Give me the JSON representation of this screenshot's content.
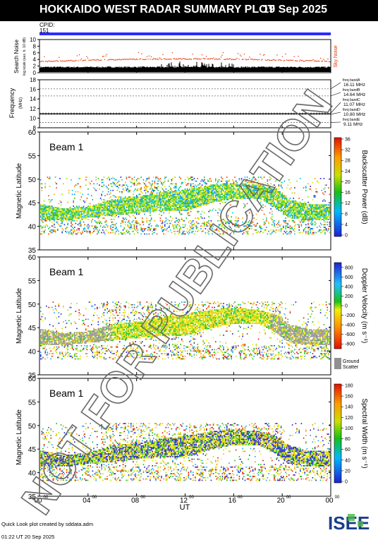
{
  "header": {
    "title": "HOKKAIDO WEST RADAR SUMMARY PLOT",
    "date": "19 Sep 2025"
  },
  "cpid": {
    "label": "CPID:",
    "value": "151",
    "bar_color": "#2b2bff"
  },
  "noise_panel": {
    "ylabel": "Search Noise",
    "ylabel_sub": "log scale (aux. b. 10 dB)",
    "legend": "Sky Noise",
    "yticks": [
      "0",
      "2",
      "4",
      "6",
      "8",
      "10"
    ],
    "ylim": [
      0,
      10
    ]
  },
  "freq_panel": {
    "ylabel": "Frequency",
    "ylabel_unit": "(MHz)",
    "yticks": [
      "8",
      "10",
      "12",
      "14",
      "16",
      "18"
    ],
    "ylim": [
      8,
      18
    ],
    "bands": [
      {
        "name": "freq bandA",
        "value": "16.11 MHz"
      },
      {
        "name": "freq bandB",
        "value": "14.64 MHz"
      },
      {
        "name": "freq bandC",
        "value": "11.07 MHz"
      },
      {
        "name": "freq bandD",
        "value": "10.80 MHz"
      },
      {
        "name": "freq bandE",
        "value": "9.11 MHz"
      }
    ]
  },
  "panels": [
    {
      "beam": "Beam  1",
      "ylabel": "Magnetic Latitude",
      "yticks": [
        "35",
        "40",
        "45",
        "50",
        "55",
        "60"
      ],
      "cb_label": "Backscatter Power (dB)",
      "cb_ticks": [
        "0",
        "4",
        "8",
        "12",
        "16",
        "20",
        "24",
        "28",
        "32",
        "36"
      ],
      "ground_scatter": ""
    },
    {
      "beam": "Beam  1",
      "ylabel": "Magnetic Latitude",
      "yticks": [
        "35",
        "40",
        "45",
        "50",
        "55",
        "60"
      ],
      "cb_label": "Doppler Velocity (m s⁻¹)",
      "cb_ticks": [
        "800",
        "600",
        "400",
        "200",
        "0",
        "-200",
        "-400",
        "-600",
        "-800"
      ],
      "ground_scatter": "Ground Scatter"
    },
    {
      "beam": "Beam  1",
      "ylabel": "Magnetic Latitude",
      "yticks": [
        "35",
        "40",
        "45",
        "50",
        "55",
        "60"
      ],
      "cb_label": "Spectral Width (m s⁻¹)",
      "cb_ticks": [
        "0",
        "20",
        "40",
        "60",
        "80",
        "100",
        "120",
        "140",
        "160",
        "180"
      ],
      "ground_scatter": ""
    }
  ],
  "xaxis": {
    "label": "UT",
    "ticks": [
      "00",
      "04",
      "08",
      "12",
      "16",
      "20",
      "00"
    ],
    "sup": "00"
  },
  "watermark": "NOT FOR PUBLICATION",
  "footer": {
    "line1": "Quick Look plot created by sddata.adm",
    "line2": "01:22 UT 20 Sep 2025"
  },
  "logo": {
    "text": "ISEE"
  },
  "chart_data": {
    "type": "heatmap",
    "x_hours": [
      0,
      24
    ],
    "y_range": [
      35,
      60
    ],
    "echo_band": [
      {
        "ut": 0,
        "lower": 42.0,
        "upper": 44.5
      },
      {
        "ut": 2,
        "lower": 42.0,
        "upper": 43.5
      },
      {
        "ut": 4,
        "lower": 42.5,
        "upper": 44.0
      },
      {
        "ut": 6,
        "lower": 43.0,
        "upper": 45.5
      },
      {
        "ut": 8,
        "lower": 43.5,
        "upper": 46.0
      },
      {
        "ut": 10,
        "lower": 44.0,
        "upper": 47.0
      },
      {
        "ut": 12,
        "lower": 44.0,
        "upper": 47.5
      },
      {
        "ut": 14,
        "lower": 45.5,
        "upper": 48.5
      },
      {
        "ut": 16,
        "lower": 46.5,
        "upper": 49.0
      },
      {
        "ut": 18,
        "lower": 46.5,
        "upper": 48.5
      },
      {
        "ut": 19.5,
        "lower": 44.5,
        "upper": 47.5
      },
      {
        "ut": 20.5,
        "lower": 42.5,
        "upper": 45.5
      },
      {
        "ut": 22,
        "lower": 42.0,
        "upper": 44.5
      },
      {
        "ut": 24,
        "lower": 42.0,
        "upper": 44.5
      }
    ],
    "sky_noise_level": 3.2,
    "search_noise_level": 1.5
  }
}
